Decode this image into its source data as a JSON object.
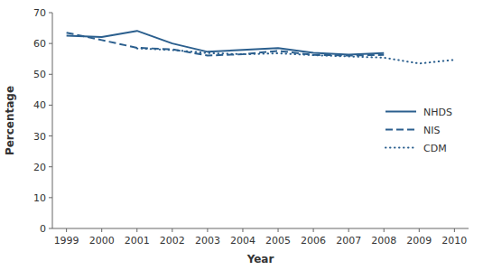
{
  "chart_data": {
    "type": "line",
    "xlabel": "Year",
    "ylabel": "Percentage",
    "x": [
      1999,
      2000,
      2001,
      2002,
      2003,
      2004,
      2005,
      2006,
      2007,
      2008,
      2009,
      2010
    ],
    "series": [
      {
        "name": "NHDS",
        "color": "#2B5F8E",
        "line_style": "solid",
        "values": [
          62.5,
          62.1,
          64.1,
          60.0,
          57.3,
          57.9,
          58.5,
          57.0,
          56.4,
          56.9,
          null,
          null
        ]
      },
      {
        "name": "NIS",
        "color": "#2B5F8E",
        "line_style": "dashed",
        "values": [
          63.5,
          61.1,
          58.6,
          58.1,
          56.1,
          56.5,
          57.6,
          56.3,
          56.1,
          56.3,
          null,
          null
        ]
      },
      {
        "name": "CDM",
        "color": "#2B5F8E",
        "line_style": "dotted",
        "values": [
          null,
          null,
          58.4,
          57.9,
          56.9,
          56.5,
          56.8,
          56.2,
          55.8,
          55.4,
          53.5,
          54.7
        ]
      }
    ],
    "xlim": [
      1998.6,
      2010.4
    ],
    "xticks": [
      1999,
      2000,
      2001,
      2002,
      2003,
      2004,
      2005,
      2006,
      2007,
      2008,
      2009,
      2010
    ],
    "ylim": [
      0,
      70
    ],
    "yticks": [
      0,
      10,
      20,
      30,
      40,
      50,
      60,
      70
    ],
    "grid": false,
    "legend": "right"
  }
}
